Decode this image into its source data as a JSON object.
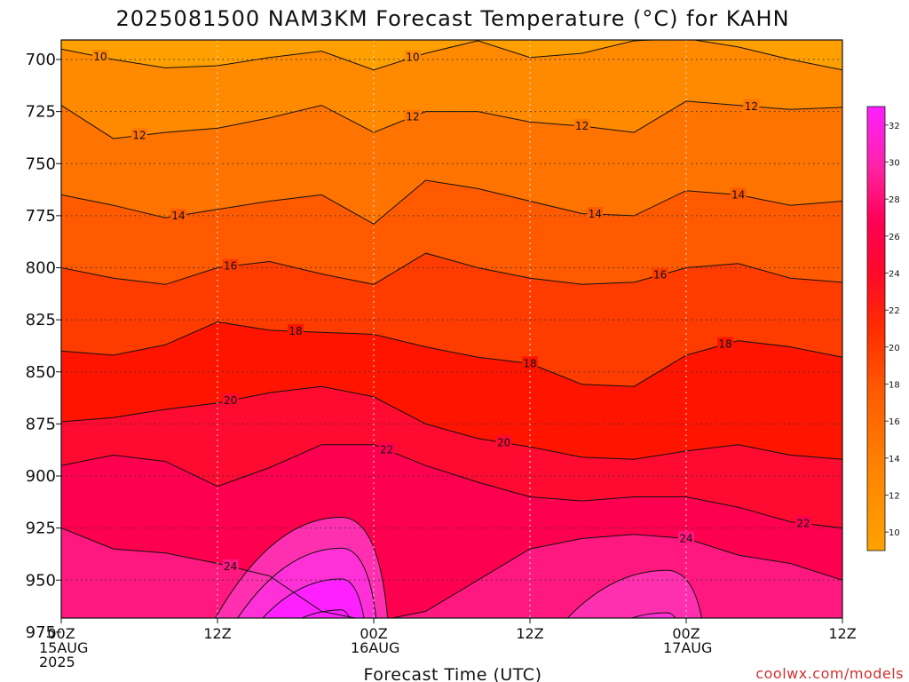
{
  "chart_data": {
    "type": "heatmap",
    "title": "2025081500 NAM3KM Forecast Temperature (°C) for KAHN",
    "xlabel": "Forecast Time (UTC)",
    "ylabel": "",
    "credit": "coolwx.com/models",
    "x_ticks": [
      {
        "hour": 0,
        "lines": [
          "00Z",
          "15AUG",
          "2025"
        ]
      },
      {
        "hour": 12,
        "lines": [
          "12Z"
        ]
      },
      {
        "hour": 24,
        "lines": [
          "00Z",
          "16AUG"
        ]
      },
      {
        "hour": 36,
        "lines": [
          "12Z"
        ]
      },
      {
        "hour": 48,
        "lines": [
          "00Z",
          "17AUG"
        ]
      },
      {
        "hour": 60,
        "lines": [
          "12Z"
        ]
      }
    ],
    "xlim": [
      0,
      60
    ],
    "ylim": [
      986,
      690
    ],
    "y_ticks": [
      700,
      725,
      750,
      775,
      800,
      825,
      850,
      875,
      900,
      925,
      950,
      975
    ],
    "grid": true,
    "colorbar": {
      "ticks": [
        10,
        12,
        14,
        16,
        18,
        20,
        22,
        24,
        26,
        28,
        30,
        32
      ],
      "colors": [
        "#ffa000",
        "#ff8a00",
        "#ff7400",
        "#ff5a00",
        "#ff3c00",
        "#ff1400",
        "#ff0a30",
        "#ff0050",
        "#ff1880",
        "#ff30b0",
        "#ff30d8",
        "#ff20ff"
      ],
      "placement": "right"
    },
    "isotherms": [
      {
        "temp": 10,
        "pressure": [
          695,
          700,
          704,
          703,
          699,
          696,
          705,
          697,
          691,
          699,
          697,
          691,
          690,
          694,
          700,
          705
        ],
        "labels_at_hour": [
          3,
          27
        ]
      },
      {
        "temp": 12,
        "pressure": [
          722,
          738,
          735,
          733,
          728,
          722,
          735,
          725,
          725,
          730,
          732,
          735,
          720,
          722,
          724,
          723
        ],
        "labels_at_hour": [
          6,
          27,
          40,
          53
        ]
      },
      {
        "temp": 14,
        "pressure": [
          765,
          770,
          776,
          772,
          768,
          765,
          779,
          758,
          762,
          768,
          774,
          775,
          763,
          765,
          770,
          768
        ],
        "labels_at_hour": [
          9,
          41,
          52
        ]
      },
      {
        "temp": 16,
        "pressure": [
          800,
          805,
          808,
          800,
          797,
          803,
          808,
          793,
          800,
          805,
          808,
          807,
          800,
          798,
          805,
          807
        ],
        "labels_at_hour": [
          13,
          46
        ]
      },
      {
        "temp": 18,
        "pressure": [
          840,
          842,
          837,
          826,
          830,
          831,
          832,
          838,
          843,
          846,
          856,
          857,
          842,
          835,
          838,
          843
        ],
        "labels_at_hour": [
          18,
          36,
          51
        ]
      },
      {
        "temp": 20,
        "pressure": [
          874,
          872,
          868,
          865,
          860,
          857,
          862,
          875,
          882,
          886,
          891,
          892,
          888,
          885,
          890,
          892
        ],
        "labels_at_hour": [
          13,
          34
        ]
      },
      {
        "temp": 22,
        "pressure": [
          895,
          890,
          893,
          905,
          896,
          885,
          885,
          895,
          903,
          910,
          912,
          910,
          910,
          915,
          922,
          925
        ],
        "labels_at_hour": [
          25,
          57
        ]
      },
      {
        "temp": 24,
        "pressure": [
          925,
          935,
          937,
          942,
          948,
          965,
          970,
          965,
          950,
          935,
          930,
          928,
          930,
          938,
          942,
          950
        ],
        "labels_at_hour": [
          13,
          48
        ]
      }
    ],
    "warm_surface_bulges": [
      {
        "peak_temp": 32,
        "center_hour": 20,
        "top_pressure": 905
      },
      {
        "peak_temp": 28,
        "center_hour": 45,
        "top_pressure": 925
      }
    ],
    "ground_top_pressure": 980
  }
}
